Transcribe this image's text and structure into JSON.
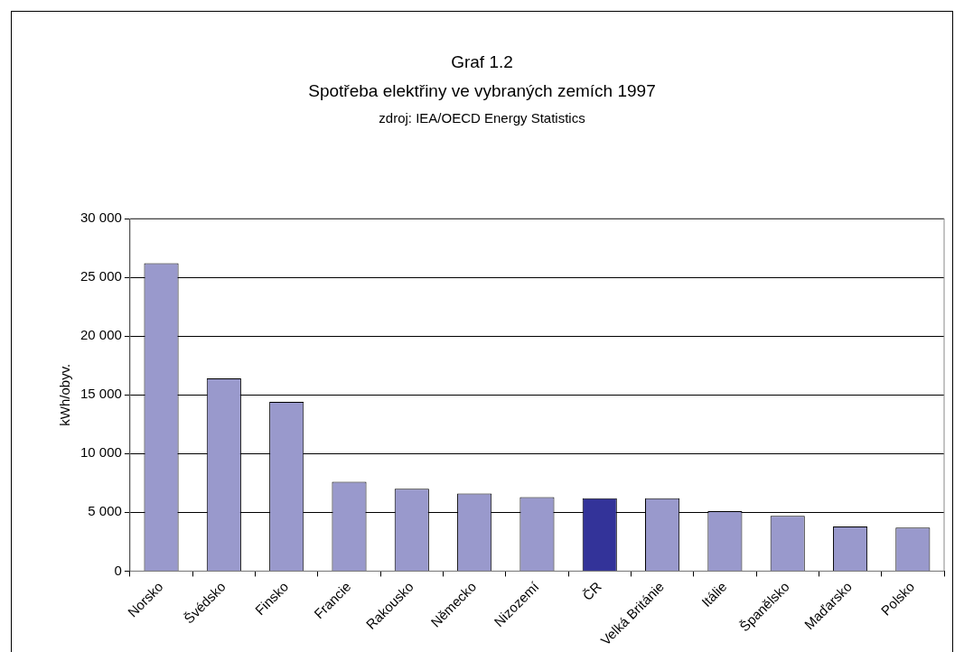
{
  "chart_data": {
    "type": "bar",
    "title": "Graf 1.2",
    "subtitle": "Spotřeba elektřiny ve vybraných zemích 1997",
    "annotations": [
      "zdroj: IEA/OECD Energy Statistics"
    ],
    "ylabel": "kWh/obyv.",
    "categories": [
      "Norsko",
      "Švédsko",
      "Finsko",
      "Francie",
      "Rakousko",
      "Německo",
      "Nizozemí",
      "ČR",
      "Velká Británie",
      "Itálie",
      "Španělsko",
      "Maďarsko",
      "Polsko"
    ],
    "values": [
      26200,
      16400,
      14400,
      7600,
      7000,
      6600,
      6300,
      6200,
      6200,
      5100,
      4700,
      3800,
      3700
    ],
    "colors": [
      "#9999cc",
      "#9999cc",
      "#9999cc",
      "#9999cc",
      "#9999cc",
      "#9999cc",
      "#9999cc",
      "#333399",
      "#9999cc",
      "#9999cc",
      "#9999cc",
      "#9999cc",
      "#9999cc"
    ],
    "ylim": [
      0,
      30000
    ],
    "yticks": [
      {
        "value": 0,
        "label": "0"
      },
      {
        "value": 5000,
        "label": "5 000"
      },
      {
        "value": 10000,
        "label": "10 000"
      },
      {
        "value": 15000,
        "label": "15 000"
      },
      {
        "value": 20000,
        "label": "20 000"
      },
      {
        "value": 25000,
        "label": "25 000"
      },
      {
        "value": 30000,
        "label": "30 000"
      }
    ],
    "grid": "y",
    "legend": false
  }
}
